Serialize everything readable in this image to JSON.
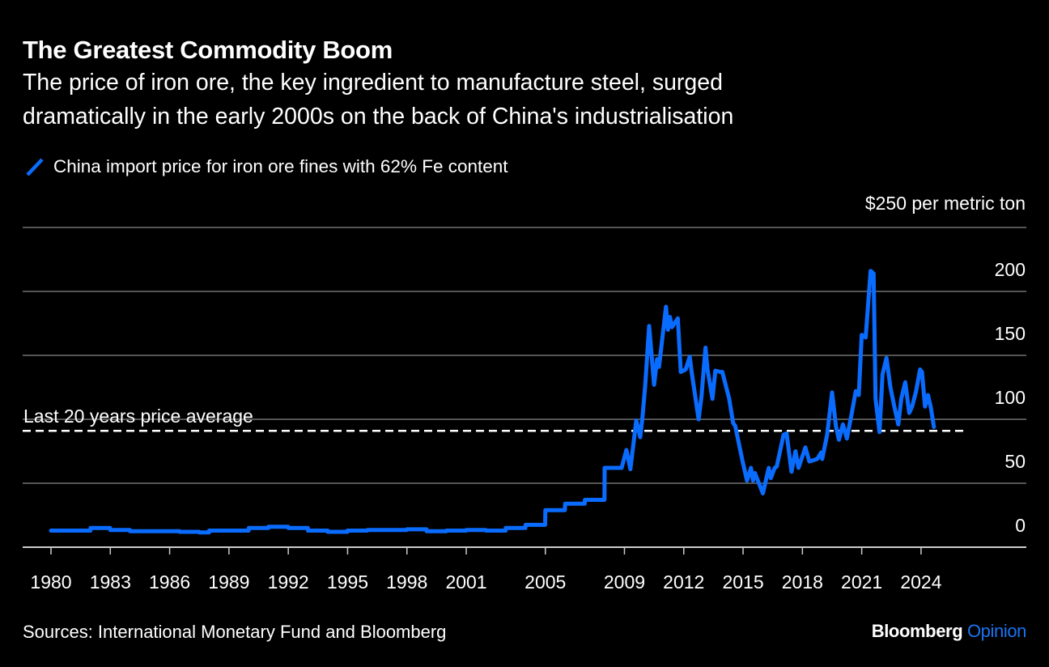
{
  "header": {
    "title": "The Greatest Commodity Boom",
    "subtitle_line1": "The price of iron ore, the key ingredient to manufacture steel, surged",
    "subtitle_line2": "dramatically in the early 2000s on the back of China's industrialisation"
  },
  "footer": {
    "source": "Sources: International Monetary Fund and Bloomberg",
    "logo_brand": "Bloomberg",
    "logo_product": "Opinion"
  },
  "colors": {
    "line": "#0a6cff",
    "background": "#000000",
    "grid": "#555555",
    "logo_accent": "#1a73f0"
  },
  "chart_data": {
    "type": "line",
    "title": "The Greatest Commodity Boom",
    "ylabel": "$250 per metric ton",
    "y_unit_label": "$250 per metric ton",
    "ylim": [
      0,
      250
    ],
    "yticks": [
      0,
      50,
      100,
      150,
      200
    ],
    "xlim": [
      1980,
      2026.5
    ],
    "xticks": [
      1980,
      1983,
      1986,
      1989,
      1992,
      1995,
      1998,
      2001,
      2005,
      2009,
      2012,
      2015,
      2018,
      2021,
      2024
    ],
    "grid": true,
    "legend_placement": "top-left",
    "series": [
      {
        "name": "China import price for iron ore fines with 62% Fe content",
        "color": "#0a6cff",
        "points": [
          [
            1980,
            13
          ],
          [
            1981.99,
            13
          ],
          [
            1982,
            15
          ],
          [
            1982.99,
            15
          ],
          [
            1983,
            13.5
          ],
          [
            1983.99,
            13.5
          ],
          [
            1984,
            12.5
          ],
          [
            1986.49,
            12.5
          ],
          [
            1986.5,
            12
          ],
          [
            1987.49,
            12
          ],
          [
            1987.5,
            11.5
          ],
          [
            1987.99,
            11.5
          ],
          [
            1988,
            13
          ],
          [
            1989.99,
            13
          ],
          [
            1990,
            15
          ],
          [
            1990.99,
            15
          ],
          [
            1991,
            16
          ],
          [
            1991.99,
            16
          ],
          [
            1992,
            15
          ],
          [
            1992.99,
            15
          ],
          [
            1993,
            13
          ],
          [
            1993.99,
            13
          ],
          [
            1994,
            12
          ],
          [
            1994.99,
            12
          ],
          [
            1995,
            13
          ],
          [
            1995.99,
            13
          ],
          [
            1996,
            13.5
          ],
          [
            1997.99,
            13.5
          ],
          [
            1998,
            14
          ],
          [
            1998.99,
            14
          ],
          [
            1999,
            12.5
          ],
          [
            1999.99,
            12.5
          ],
          [
            2000,
            13
          ],
          [
            2000.99,
            13
          ],
          [
            2001,
            13.5
          ],
          [
            2001.99,
            13.5
          ],
          [
            2002,
            13
          ],
          [
            2002.99,
            13
          ],
          [
            2003,
            15
          ],
          [
            2003.99,
            15
          ],
          [
            2004,
            17.5
          ],
          [
            2004.99,
            17.5
          ],
          [
            2005,
            29
          ],
          [
            2005.99,
            29
          ],
          [
            2006,
            34
          ],
          [
            2006.99,
            34
          ],
          [
            2007,
            37
          ],
          [
            2007.99,
            37
          ],
          [
            2008,
            62
          ],
          [
            2008.86,
            62
          ],
          [
            2009.1,
            76
          ],
          [
            2009.3,
            61
          ],
          [
            2009.6,
            99
          ],
          [
            2009.8,
            86
          ],
          [
            2009.9,
            100
          ],
          [
            2010.05,
            126
          ],
          [
            2010.25,
            173
          ],
          [
            2010.5,
            127
          ],
          [
            2010.65,
            147
          ],
          [
            2010.75,
            141
          ],
          [
            2011.1,
            188
          ],
          [
            2011.2,
            170
          ],
          [
            2011.3,
            180
          ],
          [
            2011.4,
            172
          ],
          [
            2011.7,
            179
          ],
          [
            2011.85,
            137
          ],
          [
            2012.1,
            139
          ],
          [
            2012.3,
            149
          ],
          [
            2012.4,
            137
          ],
          [
            2012.75,
            100
          ],
          [
            2012.9,
            118
          ],
          [
            2013.1,
            156
          ],
          [
            2013.2,
            139
          ],
          [
            2013.45,
            116
          ],
          [
            2013.6,
            138
          ],
          [
            2013.85,
            137
          ],
          [
            2013.95,
            137
          ],
          [
            2014.3,
            116
          ],
          [
            2014.35,
            111
          ],
          [
            2014.5,
            97
          ],
          [
            2014.6,
            95
          ],
          [
            2014.95,
            69
          ],
          [
            2015.2,
            52
          ],
          [
            2015.4,
            62
          ],
          [
            2015.5,
            52
          ],
          [
            2015.6,
            58
          ],
          [
            2016.0,
            42
          ],
          [
            2016.3,
            62
          ],
          [
            2016.4,
            54
          ],
          [
            2016.6,
            62
          ],
          [
            2016.7,
            63
          ],
          [
            2017.05,
            88
          ],
          [
            2017.2,
            89
          ],
          [
            2017.45,
            59
          ],
          [
            2017.65,
            75
          ],
          [
            2017.8,
            62
          ],
          [
            2018.15,
            78
          ],
          [
            2018.35,
            67
          ],
          [
            2018.75,
            69
          ],
          [
            2018.95,
            74
          ],
          [
            2019.0,
            69
          ],
          [
            2019.25,
            88
          ],
          [
            2019.5,
            121
          ],
          [
            2019.7,
            94
          ],
          [
            2019.85,
            84
          ],
          [
            2020.05,
            96
          ],
          [
            2020.25,
            85
          ],
          [
            2020.5,
            105
          ],
          [
            2020.7,
            122
          ],
          [
            2020.85,
            119
          ],
          [
            2021.0,
            166
          ],
          [
            2021.2,
            164
          ],
          [
            2021.45,
            216
          ],
          [
            2021.6,
            214
          ],
          [
            2021.7,
            116
          ],
          [
            2021.9,
            90
          ],
          [
            2022.05,
            135
          ],
          [
            2022.25,
            148
          ],
          [
            2022.45,
            125
          ],
          [
            2022.65,
            110
          ],
          [
            2022.85,
            96
          ],
          [
            2023.0,
            116
          ],
          [
            2023.2,
            129
          ],
          [
            2023.4,
            105
          ],
          [
            2023.55,
            110
          ],
          [
            2023.75,
            122
          ],
          [
            2023.95,
            139
          ],
          [
            2024.05,
            137
          ],
          [
            2024.2,
            110
          ],
          [
            2024.35,
            119
          ],
          [
            2024.5,
            109
          ],
          [
            2024.65,
            94
          ]
        ]
      }
    ],
    "annotations": [
      {
        "text": "Last 20 years price average",
        "type": "horizontal-dashed-line",
        "value": 91,
        "x_range": [
          1980,
          2026
        ]
      }
    ]
  }
}
